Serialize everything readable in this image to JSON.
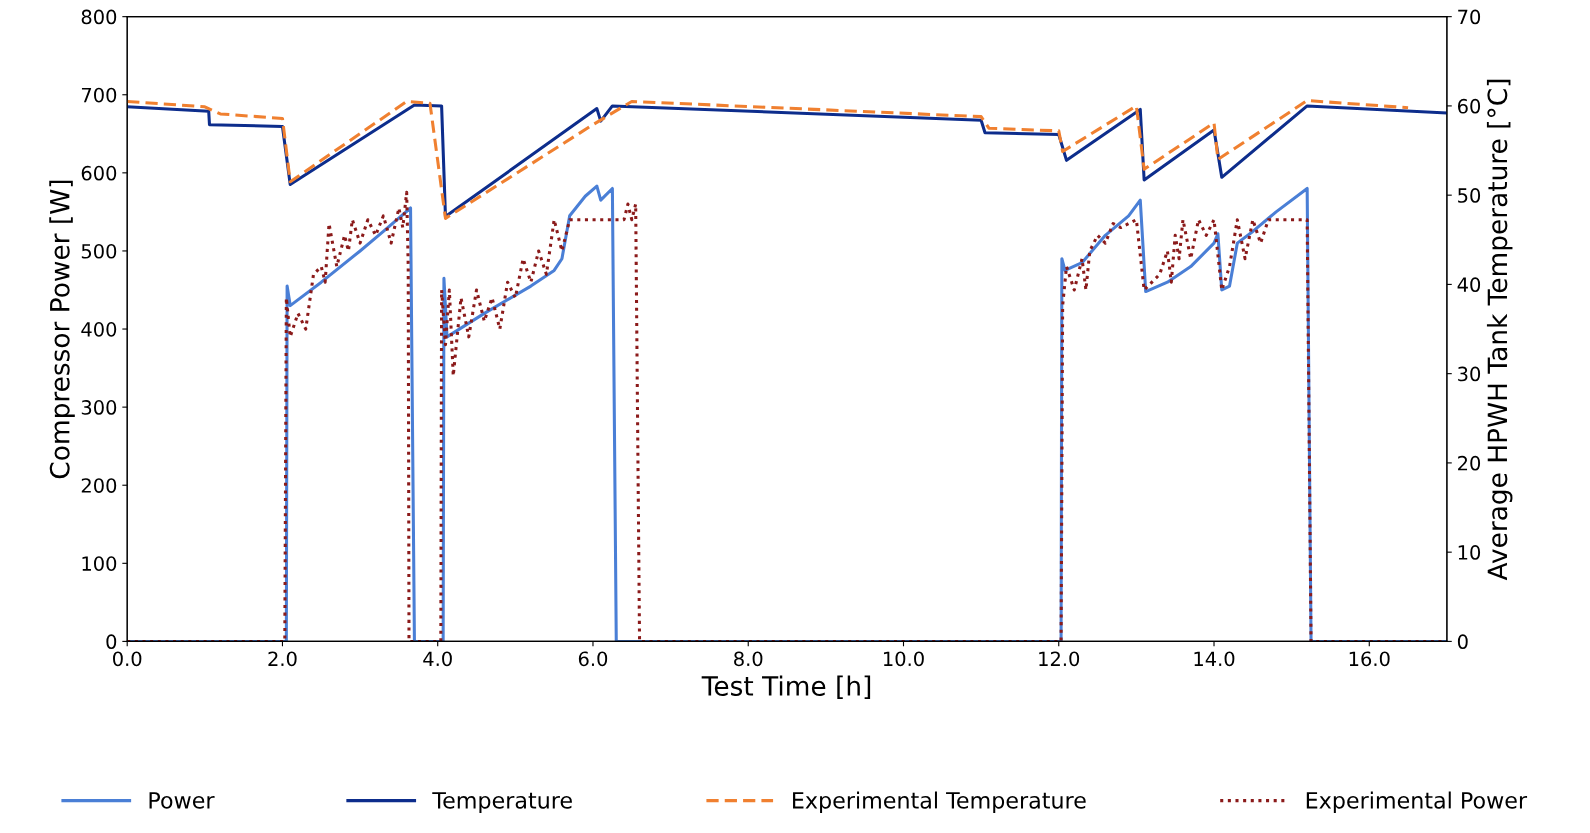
{
  "chart_data": {
    "type": "line",
    "xlabel": "Test Time [h]",
    "ylabel": "Compressor Power [W]",
    "y2label": "Average HPWH Tank Temperature [°C]",
    "xlim": [
      0,
      17
    ],
    "xticks": [
      {
        "value": 0,
        "label": "0.0"
      },
      {
        "value": 2,
        "label": "2.0"
      },
      {
        "value": 4,
        "label": "4.0"
      },
      {
        "value": 6,
        "label": "6.0"
      },
      {
        "value": 8,
        "label": "8.0"
      },
      {
        "value": 10,
        "label": "10.0"
      },
      {
        "value": 12,
        "label": "12.0"
      },
      {
        "value": 14,
        "label": "14.0"
      },
      {
        "value": 16,
        "label": "16.0"
      }
    ],
    "ylim": [
      0,
      800
    ],
    "yticks": [
      0,
      100,
      200,
      300,
      400,
      500,
      600,
      700,
      800
    ],
    "y2lim": [
      0,
      70
    ],
    "y2ticks": [
      0,
      10,
      20,
      30,
      40,
      50,
      60,
      70
    ],
    "grid": false,
    "legend": "bottom",
    "marker": "none",
    "series": [
      {
        "name": "Power",
        "color": "#4a7fd6",
        "line_style": "solid",
        "x": [
          0,
          2.05,
          2.06,
          2.1,
          2.5,
          3.0,
          3.3,
          3.65,
          3.7,
          4.07,
          4.08,
          4.12,
          4.6,
          5.2,
          5.5,
          5.6,
          5.7,
          5.9,
          6.05,
          6.1,
          6.25,
          6.3,
          12.03,
          12.04,
          12.08,
          12.3,
          12.6,
          12.9,
          13.05,
          13.12,
          13.4,
          13.7,
          14.0,
          14.05,
          14.1,
          14.2,
          14.3,
          14.5,
          14.8,
          15.2,
          15.25,
          17
        ],
        "values": [
          0,
          0,
          455,
          430,
          460,
          500,
          525,
          555,
          0,
          0,
          465,
          390,
          420,
          455,
          475,
          490,
          545,
          570,
          583,
          565,
          580,
          0,
          0,
          490,
          475,
          485,
          520,
          545,
          565,
          448,
          460,
          480,
          510,
          522,
          450,
          455,
          510,
          525,
          550,
          580,
          0,
          0
        ]
      },
      {
        "name": "Temperature",
        "color": "#0d2d8c",
        "line_style": "solid",
        "axis": "y2",
        "x": [
          0,
          1.05,
          1.06,
          2.0,
          2.1,
          3.7,
          4.05,
          4.1,
          6.05,
          6.1,
          6.25,
          11.0,
          11.05,
          12.0,
          12.1,
          13.05,
          13.1,
          14.0,
          14.1,
          15.2,
          17
        ],
        "values": [
          59.9,
          59.4,
          57.9,
          57.7,
          51.2,
          60.1,
          60.0,
          47.6,
          59.7,
          58.3,
          60.0,
          58.4,
          57.0,
          56.8,
          53.9,
          59.6,
          51.7,
          57.3,
          52.0,
          60.0,
          59.2
        ]
      },
      {
        "name": "Experimental Temperature",
        "color": "#f08030",
        "line_style": "dashed",
        "axis": "y2",
        "x": [
          0,
          1.0,
          1.2,
          2.0,
          2.1,
          3.6,
          3.9,
          4.1,
          6.0,
          6.5,
          11.0,
          11.1,
          12.0,
          12.05,
          13.0,
          13.1,
          14.0,
          14.05,
          15.2,
          16.5
        ],
        "values": [
          60.5,
          59.9,
          59.1,
          58.6,
          51.5,
          60.5,
          60.3,
          47.4,
          57.9,
          60.5,
          58.8,
          57.5,
          57.2,
          54.9,
          60.0,
          52.9,
          58.1,
          54.0,
          60.6,
          59.8
        ]
      },
      {
        "name": "Experimental Power",
        "color": "#8b1a1a",
        "line_style": "dotted",
        "x": [
          0,
          2.03,
          2.05,
          2.1,
          2.2,
          2.3,
          2.4,
          2.5,
          2.55,
          2.6,
          2.7,
          2.8,
          2.85,
          2.9,
          3.0,
          3.1,
          3.2,
          3.3,
          3.4,
          3.5,
          3.55,
          3.6,
          3.62,
          3.63,
          4.04,
          4.05,
          4.1,
          4.15,
          4.2,
          4.3,
          4.4,
          4.5,
          4.6,
          4.7,
          4.8,
          4.9,
          5.0,
          5.1,
          5.2,
          5.3,
          5.4,
          5.5,
          5.6,
          5.7,
          6.0,
          6.4,
          6.45,
          6.5,
          6.55,
          6.6,
          12.03,
          12.05,
          12.1,
          12.2,
          12.3,
          12.35,
          12.4,
          12.5,
          12.6,
          12.7,
          12.8,
          13.0,
          13.1,
          13.3,
          13.4,
          13.45,
          13.5,
          13.55,
          13.6,
          13.7,
          13.8,
          13.9,
          14.0,
          14.1,
          14.2,
          14.3,
          14.4,
          14.5,
          14.6,
          14.7,
          15.2,
          15.25,
          17
        ],
        "values": [
          0,
          0,
          440,
          390,
          420,
          400,
          470,
          480,
          460,
          535,
          480,
          520,
          500,
          540,
          510,
          540,
          520,
          545,
          510,
          555,
          530,
          575,
          480,
          0,
          0,
          450,
          380,
          450,
          340,
          440,
          390,
          450,
          410,
          440,
          400,
          460,
          440,
          490,
          460,
          500,
          470,
          540,
          500,
          540,
          540,
          540,
          560,
          540,
          560,
          0,
          0,
          430,
          480,
          450,
          490,
          450,
          500,
          520,
          510,
          535,
          530,
          540,
          450,
          470,
          500,
          460,
          520,
          490,
          540,
          490,
          540,
          520,
          540,
          450,
          480,
          540,
          490,
          540,
          510,
          540,
          540,
          0,
          0
        ]
      }
    ]
  }
}
